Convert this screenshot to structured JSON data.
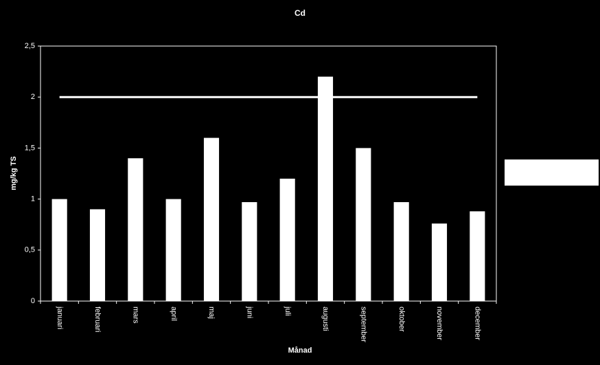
{
  "chart_data": {
    "type": "bar",
    "title": "Cd",
    "x_label": "Månad",
    "y_label": "mg/kg TS",
    "categories": [
      "januari",
      "februari",
      "mars",
      "april",
      "maj",
      "juni",
      "juli",
      "augusti",
      "september",
      "oktober",
      "november",
      "december"
    ],
    "series": [
      {
        "type": "bar",
        "color": "#ffffff",
        "values": [
          1.0,
          0.9,
          1.4,
          1.0,
          1.6,
          0.97,
          1.2,
          2.2,
          1.5,
          0.97,
          0.76,
          0.88
        ]
      },
      {
        "type": "line",
        "color": "#ffffff",
        "values": [
          2,
          2,
          2,
          2,
          2,
          2,
          2,
          2,
          2,
          2,
          2,
          2
        ]
      }
    ],
    "ylim": [
      0,
      2.5
    ],
    "yticks": [
      0,
      {
        "value": 0.5,
        "label": "0,5"
      },
      1,
      {
        "value": 1.5,
        "label": "1,5"
      },
      2,
      {
        "value": 2.5,
        "label": "2,5"
      }
    ],
    "grid": false
  }
}
